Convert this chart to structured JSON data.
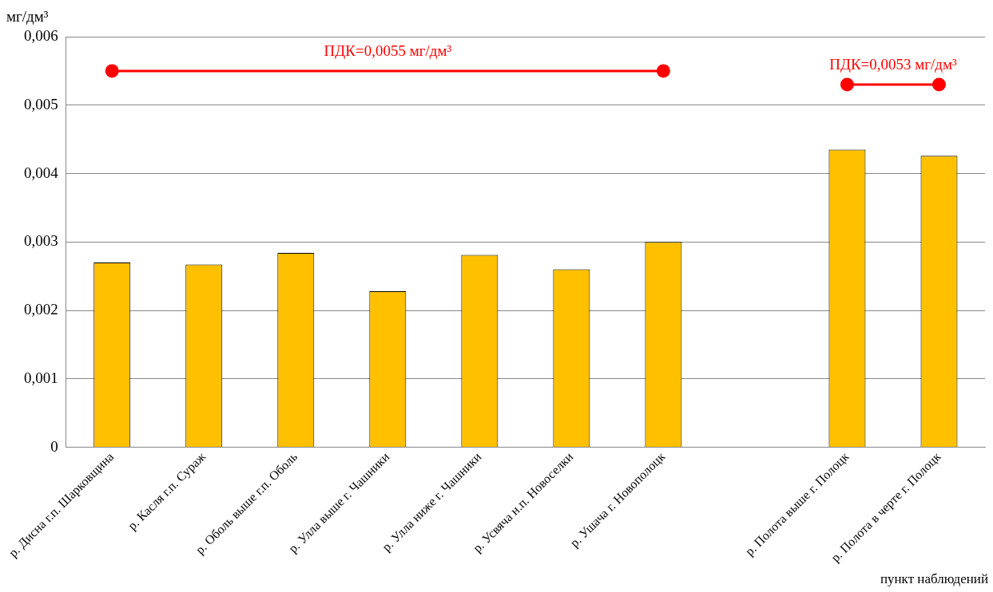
{
  "chart_data": {
    "type": "bar",
    "ylabel": "мг/дм³",
    "xlabel": "пункт наблюдений",
    "categories": [
      "р. Дисна г.п. Шарковщина",
      "р. Касля г.п. Сураж",
      "р. Оболь выше г.п. Оболь",
      "р. Улла выше г. Чашники",
      "р. Улла ниже г. Чашники",
      "р. Усвяча н.п. Новоселки",
      "р. Ушача г. Новополоцк",
      null,
      "р. Полота выше г. Полоцк",
      "р. Полота в черте г. Полоцк"
    ],
    "series": [
      {
        "color": "#ffc000",
        "values": [
          0.0027,
          0.00267,
          0.00284,
          0.00228,
          0.00281,
          0.0026,
          0.003,
          null,
          0.00435,
          0.00426
        ]
      },
      {
        "type": "line",
        "color": "#ff0000",
        "marker": "circle",
        "values": [
          0.0055,
          null,
          null,
          null,
          null,
          null,
          0.0055,
          null,
          null,
          null
        ]
      },
      {
        "type": "line",
        "color": "#ff0000",
        "marker": "circle",
        "values": [
          null,
          null,
          null,
          null,
          null,
          null,
          null,
          null,
          0.0053,
          0.0053
        ]
      }
    ],
    "ylim": [
      0,
      0.006
    ],
    "yticks": [
      0,
      {
        "value": 0.001,
        "label": "0,001"
      },
      {
        "value": 0.002,
        "label": "0,002"
      },
      {
        "value": 0.003,
        "label": "0,003"
      },
      {
        "value": 0.004,
        "label": "0,004"
      },
      {
        "value": 0.005,
        "label": "0,005"
      },
      {
        "value": 0.006,
        "label": "0,006"
      }
    ],
    "grid": "y",
    "legend": false,
    "annotations": [
      "ПДК=0,0055 мг/дм³",
      "ПДК=0,0053 мг/дм³"
    ]
  }
}
